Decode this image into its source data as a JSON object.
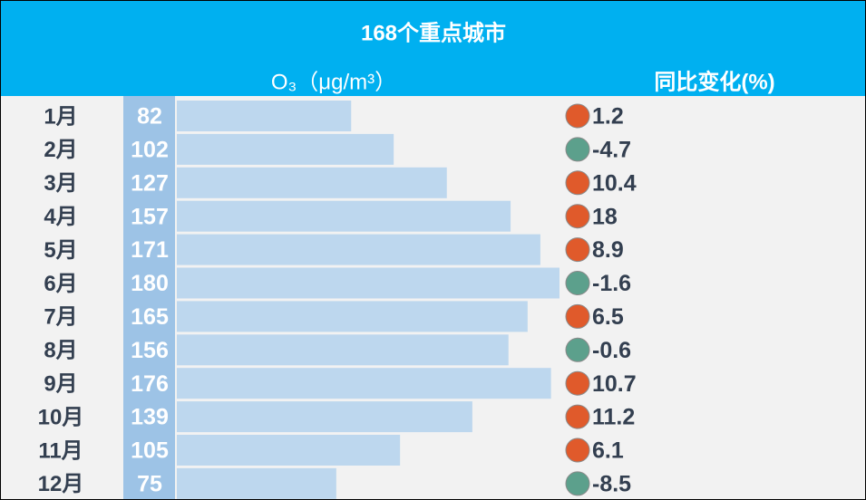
{
  "chart_data": {
    "type": "bar",
    "title": "168个重点城市",
    "value_header": "O₃（μg/m³）",
    "change_header": "同比变化(%)",
    "categories": [
      "1月",
      "2月",
      "3月",
      "4月",
      "5月",
      "6月",
      "7月",
      "8月",
      "9月",
      "10月",
      "11月",
      "12月"
    ],
    "values": [
      82,
      102,
      127,
      157,
      171,
      180,
      165,
      156,
      176,
      139,
      105,
      75
    ],
    "color": "#bdd7ee",
    "xlim": [
      0,
      180
    ],
    "changes": [
      1.2,
      -4.7,
      10.4,
      18,
      8.9,
      -1.6,
      6.5,
      -0.6,
      10.7,
      11.2,
      6.1,
      -8.5
    ],
    "up_color": "#e05a2b",
    "down_color": "#5ca08c"
  }
}
